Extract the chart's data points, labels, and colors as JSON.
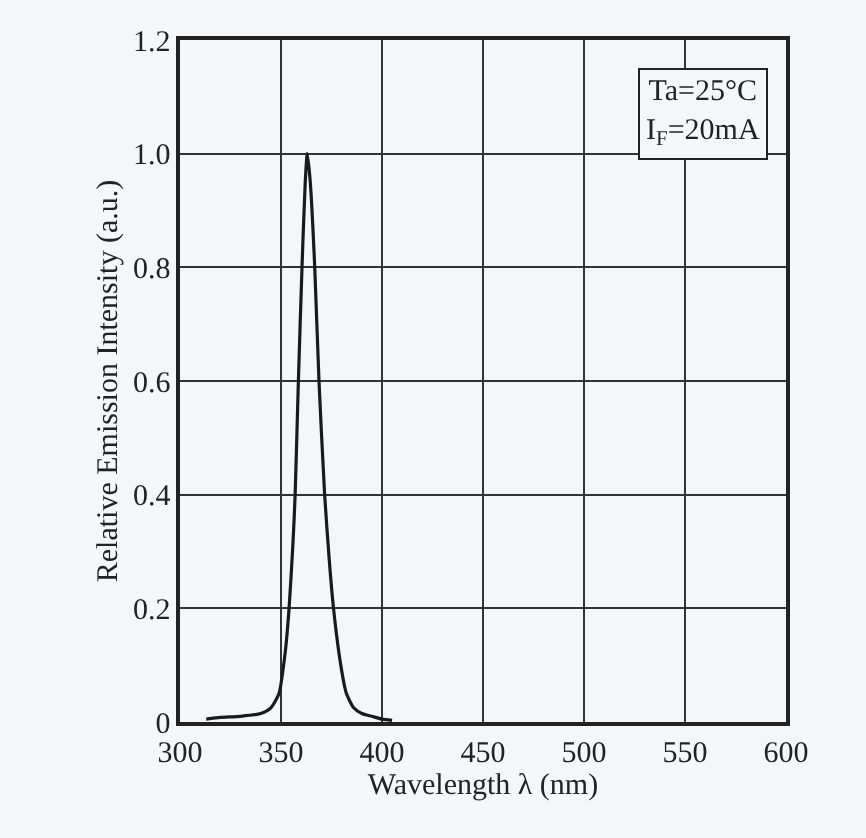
{
  "chart_data": {
    "type": "line",
    "xlabel": "Wavelength λ (nm)",
    "ylabel": "Relative Emission Intensity (a.u.)",
    "annotations": [
      "Ta=25°C",
      "I$_{F}$=20mA"
    ],
    "series": [
      {
        "color": "#1a1a1a",
        "x": [
          313,
          320,
          330,
          340,
          345,
          349,
          352,
          354,
          356,
          357,
          358.6,
          360.4,
          362,
          363,
          364.5,
          366.7,
          368.8,
          371.6,
          374,
          376,
          379.6,
          382.4,
          386,
          390,
          395,
          400,
          405
        ],
        "values": [
          0.005,
          0.008,
          0.01,
          0.015,
          0.025,
          0.05,
          0.12,
          0.2,
          0.32,
          0.4,
          0.6,
          0.8,
          0.95,
          1.0,
          0.95,
          0.8,
          0.6,
          0.4,
          0.28,
          0.2,
          0.1,
          0.05,
          0.025,
          0.015,
          0.01,
          0.005,
          0.003
        ]
      }
    ],
    "xlim": [
      300,
      600
    ],
    "xticks": [
      300,
      350,
      400,
      450,
      500,
      550,
      600
    ],
    "ylim": [
      0,
      1.2
    ],
    "yticks": [
      0,
      0.2,
      0.4,
      0.6,
      0.8,
      {
        "value": 1.0,
        "label": "1.0"
      },
      1.2
    ],
    "grid": true,
    "marker": "none",
    "line_style": "solid"
  }
}
